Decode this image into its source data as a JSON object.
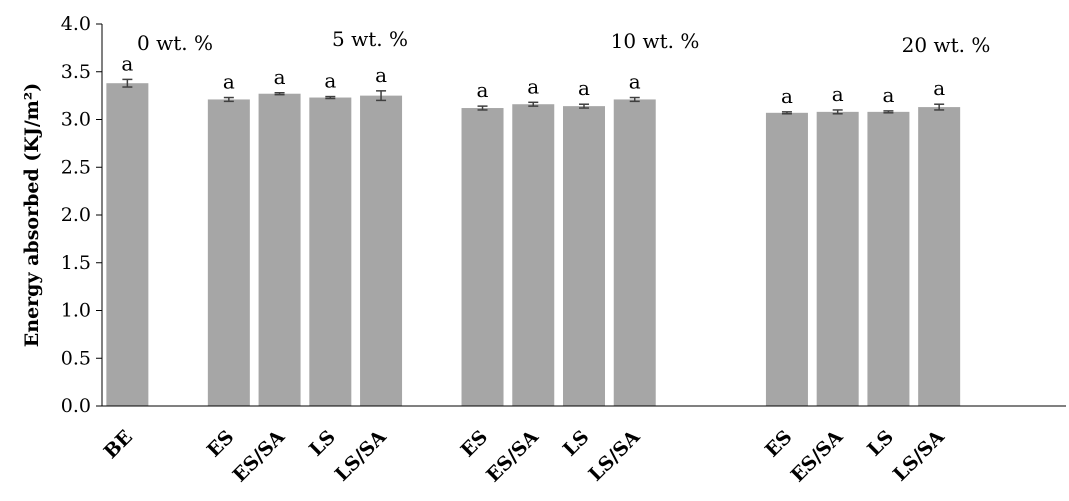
{
  "chart_data": {
    "type": "bar",
    "ylabel": "Energy absorbed (KJ/m²)",
    "xlabel": "",
    "ylim": [
      0,
      4.0
    ],
    "yticks": [
      "0.0",
      "0.5",
      "1.0",
      "1.5",
      "2.0",
      "2.5",
      "3.0",
      "3.5",
      "4.0"
    ],
    "bar_color": "#a6a6a6",
    "error_color": "#404040",
    "grid": false,
    "groups": [
      {
        "label": "0 wt. %",
        "bars": [
          {
            "category": "BE",
            "value": 3.38,
            "error": 0.04,
            "sig": "a"
          }
        ]
      },
      {
        "label": "5 wt. %",
        "bars": [
          {
            "category": "ES",
            "value": 3.21,
            "error": 0.02,
            "sig": "a"
          },
          {
            "category": "ES/SA",
            "value": 3.27,
            "error": 0.01,
            "sig": "a"
          },
          {
            "category": "LS",
            "value": 3.23,
            "error": 0.01,
            "sig": "a"
          },
          {
            "category": "LS/SA",
            "value": 3.25,
            "error": 0.05,
            "sig": "a"
          }
        ]
      },
      {
        "label": "10 wt. %",
        "bars": [
          {
            "category": "ES",
            "value": 3.12,
            "error": 0.02,
            "sig": "a"
          },
          {
            "category": "ES/SA",
            "value": 3.16,
            "error": 0.02,
            "sig": "a"
          },
          {
            "category": "LS",
            "value": 3.14,
            "error": 0.02,
            "sig": "a"
          },
          {
            "category": "LS/SA",
            "value": 3.21,
            "error": 0.02,
            "sig": "a"
          }
        ]
      },
      {
        "label": "20 wt. %",
        "bars": [
          {
            "category": "ES",
            "value": 3.07,
            "error": 0.01,
            "sig": "a"
          },
          {
            "category": "ES/SA",
            "value": 3.08,
            "error": 0.02,
            "sig": "a"
          },
          {
            "category": "LS",
            "value": 3.08,
            "error": 0.01,
            "sig": "a"
          },
          {
            "category": "LS/SA",
            "value": 3.13,
            "error": 0.03,
            "sig": "a"
          }
        ]
      }
    ]
  }
}
